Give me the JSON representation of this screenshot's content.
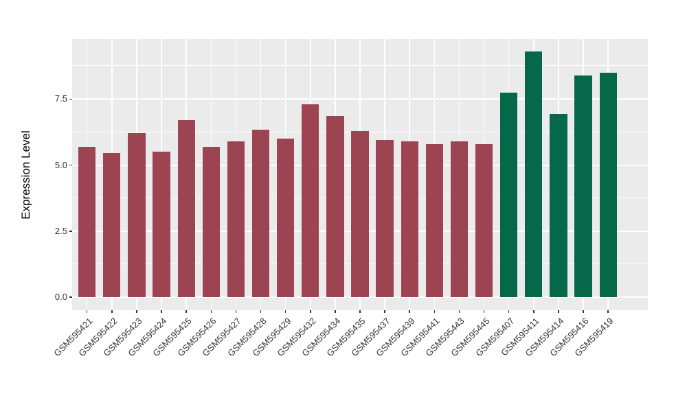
{
  "chart_data": {
    "type": "bar",
    "title": "",
    "xlabel": "",
    "ylabel": "Expression Level",
    "legend": "none",
    "grid": "on",
    "panel_background": "#EBEBEB",
    "gridline_color": "#FFFFFF",
    "axis_text_color": "#333333",
    "axis_title_color": "#000000",
    "ylim": [
      -0.49,
      9.77
    ],
    "y_ticks": {
      "values": [
        0,
        2.5,
        5.0,
        7.5
      ],
      "labels": [
        "0.0",
        "2.5",
        "5.0",
        "7.5"
      ]
    },
    "y_minor_ticks": [
      1.25,
      3.75,
      6.25,
      8.75
    ],
    "bar_width_fraction": 0.7,
    "x_edge_expansion": 0.6,
    "categories": [
      "GSM595421",
      "GSM595422",
      "GSM595423",
      "GSM595424",
      "GSM595425",
      "GSM595426",
      "GSM595427",
      "GSM595428",
      "GSM595429",
      "GSM595432",
      "GSM595434",
      "GSM595435",
      "GSM595437",
      "GSM595439",
      "GSM595441",
      "GSM595443",
      "GSM595445",
      "GSM595407",
      "GSM595411",
      "GSM595414",
      "GSM595416",
      "GSM595419"
    ],
    "values": [
      5.7,
      5.45,
      6.2,
      5.5,
      6.7,
      5.7,
      5.9,
      6.35,
      6.0,
      7.3,
      6.85,
      6.3,
      5.95,
      5.9,
      5.8,
      5.9,
      5.8,
      7.75,
      9.3,
      6.95,
      8.4,
      8.5
    ],
    "groups": [
      "maroon",
      "maroon",
      "maroon",
      "maroon",
      "maroon",
      "maroon",
      "maroon",
      "maroon",
      "maroon",
      "maroon",
      "maroon",
      "maroon",
      "maroon",
      "maroon",
      "maroon",
      "maroon",
      "maroon",
      "green",
      "green",
      "green",
      "green",
      "green"
    ],
    "group_colors": {
      "maroon": "#9D4452",
      "green": "#046849"
    }
  }
}
